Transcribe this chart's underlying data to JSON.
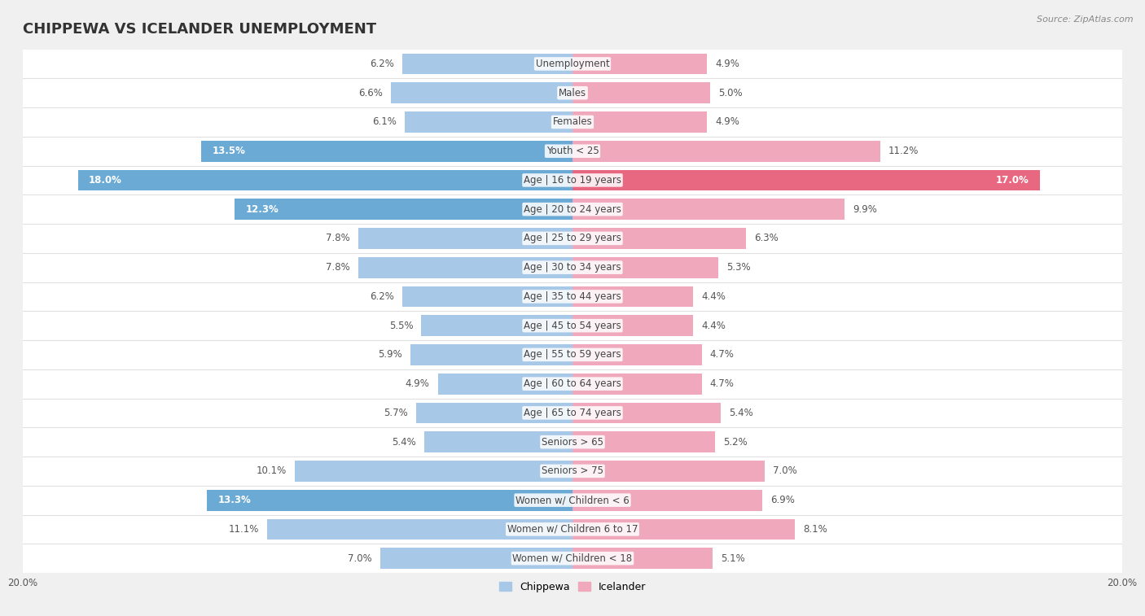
{
  "title": "CHIPPEWA VS ICELANDER UNEMPLOYMENT",
  "source": "Source: ZipAtlas.com",
  "categories": [
    "Unemployment",
    "Males",
    "Females",
    "Youth < 25",
    "Age | 16 to 19 years",
    "Age | 20 to 24 years",
    "Age | 25 to 29 years",
    "Age | 30 to 34 years",
    "Age | 35 to 44 years",
    "Age | 45 to 54 years",
    "Age | 55 to 59 years",
    "Age | 60 to 64 years",
    "Age | 65 to 74 years",
    "Seniors > 65",
    "Seniors > 75",
    "Women w/ Children < 6",
    "Women w/ Children 6 to 17",
    "Women w/ Children < 18"
  ],
  "chippewa": [
    6.2,
    6.6,
    6.1,
    13.5,
    18.0,
    12.3,
    7.8,
    7.8,
    6.2,
    5.5,
    5.9,
    4.9,
    5.7,
    5.4,
    10.1,
    13.3,
    11.1,
    7.0
  ],
  "icelander": [
    4.9,
    5.0,
    4.9,
    11.2,
    17.0,
    9.9,
    6.3,
    5.3,
    4.4,
    4.4,
    4.7,
    4.7,
    5.4,
    5.2,
    7.0,
    6.9,
    8.1,
    5.1
  ],
  "chippewa_color": "#a8c8e8",
  "icelander_color": "#f0a8bc",
  "chippewa_highlight_color": "#6aaad4",
  "icelander_highlight_color": "#e86882",
  "highlight_threshold_chip": 12.0,
  "highlight_threshold_icel": 16.0,
  "xlim": 20.0,
  "bar_height": 0.72,
  "bg_color": "#f0f0f0",
  "row_color": "#ffffff",
  "row_separator_color": "#e0e0e0",
  "label_fontsize": 8.5,
  "title_fontsize": 13,
  "value_fontsize": 8.5,
  "legend_fontsize": 9,
  "axis_fontsize": 8.5
}
